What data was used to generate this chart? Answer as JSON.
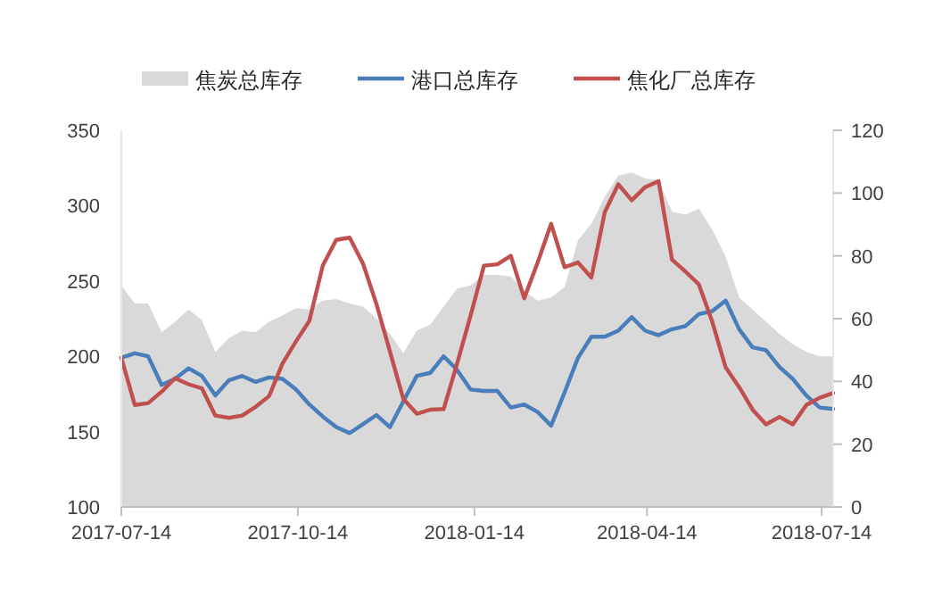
{
  "chart_data": {
    "type": "line",
    "x": [
      "2017-07-14",
      "2017-07-21",
      "2017-07-28",
      "2017-08-04",
      "2017-08-11",
      "2017-08-18",
      "2017-08-25",
      "2017-09-01",
      "2017-09-08",
      "2017-09-15",
      "2017-09-22",
      "2017-09-29",
      "2017-10-06",
      "2017-10-13",
      "2017-10-20",
      "2017-10-27",
      "2017-11-03",
      "2017-11-10",
      "2017-11-17",
      "2017-11-24",
      "2017-12-01",
      "2017-12-08",
      "2017-12-15",
      "2017-12-22",
      "2017-12-29",
      "2018-01-05",
      "2018-01-12",
      "2018-01-19",
      "2018-01-26",
      "2018-02-02",
      "2018-02-09",
      "2018-02-16",
      "2018-02-23",
      "2018-03-02",
      "2018-03-09",
      "2018-03-16",
      "2018-03-23",
      "2018-03-30",
      "2018-04-06",
      "2018-04-13",
      "2018-04-20",
      "2018-04-27",
      "2018-05-04",
      "2018-05-11",
      "2018-05-18",
      "2018-05-25",
      "2018-06-01",
      "2018-06-08",
      "2018-06-15",
      "2018-06-22",
      "2018-06-29",
      "2018-07-06",
      "2018-07-13",
      "2018-07-20"
    ],
    "series": [
      {
        "name": "焦炭总库存",
        "type": "area",
        "color": "#d9d9d9",
        "values": [
          247,
          235,
          235,
          216,
          223,
          231,
          224,
          203,
          212,
          217,
          216,
          223,
          227,
          232,
          231,
          237,
          238,
          235,
          233,
          225,
          215,
          202,
          217,
          221,
          233,
          245,
          247,
          254,
          254,
          253,
          243,
          237,
          239,
          246,
          277,
          288,
          306,
          320,
          322,
          318,
          317,
          296,
          294,
          298,
          284,
          266,
          239,
          231,
          223,
          215,
          208,
          203,
          200,
          200
        ]
      },
      {
        "name": "港口总库存",
        "color": "#4a7ebb",
        "values": [
          199,
          202,
          200,
          181,
          185,
          192,
          187,
          174,
          184,
          187,
          183,
          186,
          185,
          178,
          168,
          160,
          153,
          149,
          155,
          161,
          153,
          170,
          187,
          189,
          200,
          191,
          178,
          177,
          177,
          166,
          168,
          163,
          154,
          176,
          199,
          213,
          213,
          217,
          226,
          217,
          214,
          218,
          220,
          228,
          230,
          237,
          218,
          206,
          204,
          193,
          185,
          174,
          166,
          165
        ]
      },
      {
        "name": "焦化厂总库存",
        "axis": "y2",
        "color": "#c0504d",
        "values": [
          47.6,
          32.5,
          33.1,
          36.7,
          41.0,
          39.1,
          37.8,
          29.1,
          28.4,
          29.1,
          31.9,
          35.3,
          45.7,
          52.7,
          59.3,
          76.9,
          85.1,
          85.8,
          77.5,
          64.6,
          49.5,
          34.4,
          29.7,
          31.0,
          31.2,
          45.7,
          60.9,
          76.9,
          77.3,
          80.0,
          66.5,
          77.9,
          90.2,
          76.4,
          77.9,
          73.1,
          94.0,
          102.8,
          97.7,
          101.9,
          103.8,
          78.8,
          75.0,
          70.9,
          59.0,
          44.4,
          38.2,
          31.0,
          26.3,
          28.7,
          26.3,
          32.5,
          34.8,
          36.3
        ]
      }
    ],
    "xlim": [
      "2017-07-14",
      "2018-07-20"
    ],
    "xticks": [
      "2017-07-14",
      "2017-10-14",
      "2018-01-14",
      "2018-04-14",
      "2018-07-14"
    ],
    "ylim": [
      100,
      350
    ],
    "yticks": [
      100,
      150,
      200,
      250,
      300,
      350
    ],
    "y2lim": [
      0,
      120
    ],
    "y2ticks": [
      0,
      20,
      40,
      60,
      80,
      100,
      120
    ],
    "legend": "top",
    "grid": false,
    "marker": "none",
    "line_style": "solid"
  }
}
